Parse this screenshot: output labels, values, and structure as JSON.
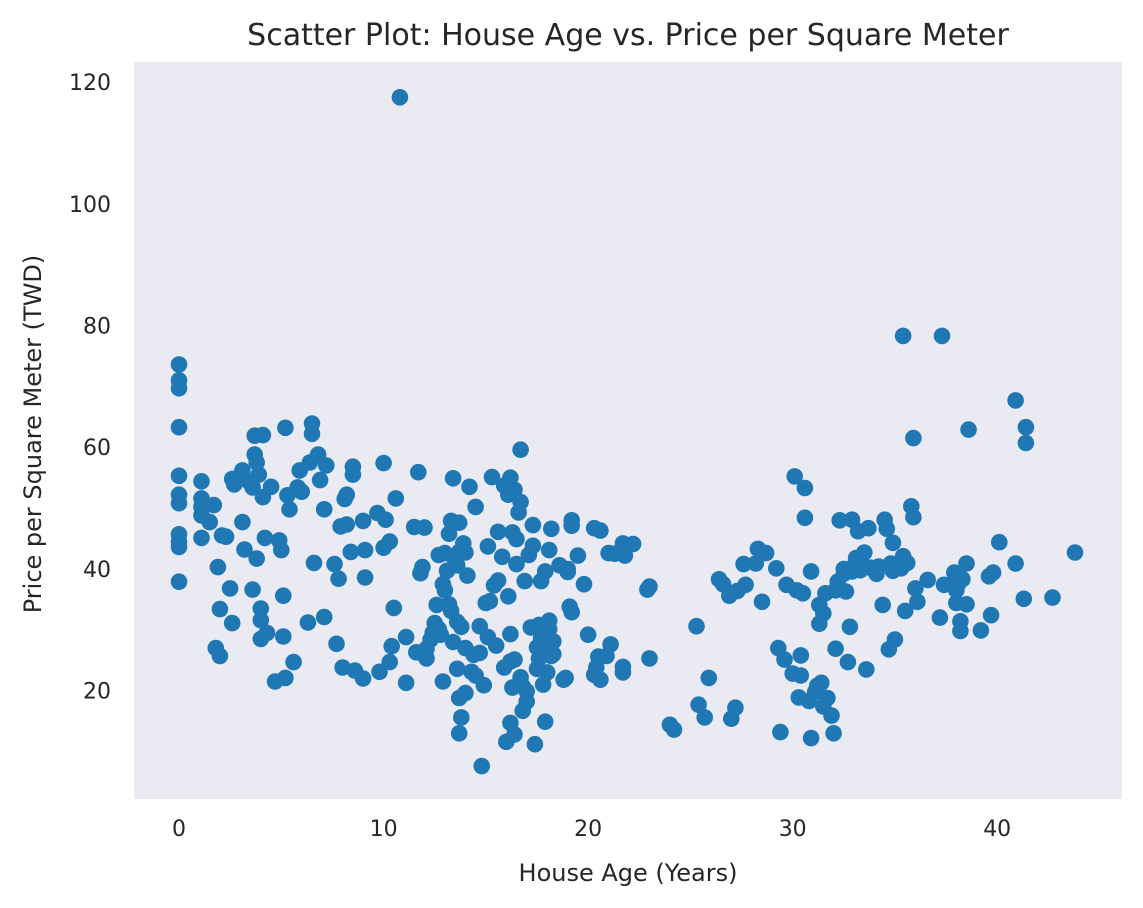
{
  "chart_data": {
    "type": "scatter",
    "title": "Scatter Plot: House Age vs. Price per Square Meter",
    "xlabel": "House Age (Years)",
    "ylabel": "Price per Square Meter (TWD)",
    "xlim": [
      -2.2,
      46.1
    ],
    "ylim": [
      2.2,
      123.3
    ],
    "xticks": [
      0,
      10,
      20,
      30,
      40
    ],
    "yticks": [
      20,
      40,
      60,
      80,
      100,
      120
    ],
    "grid": false,
    "background": "#EAEAF2",
    "marker_color": "#1F77B4",
    "points": [
      [
        0,
        73.6
      ],
      [
        0,
        71.0
      ],
      [
        0,
        69.7
      ],
      [
        0,
        63.3
      ],
      [
        0,
        55.3
      ],
      [
        0,
        52.2
      ],
      [
        0,
        50.8
      ],
      [
        0,
        45.7
      ],
      [
        0,
        44.5
      ],
      [
        0,
        43.6
      ],
      [
        0,
        37.9
      ],
      [
        1.1,
        54.4
      ],
      [
        1.1,
        51.6
      ],
      [
        1.1,
        50.2
      ],
      [
        1.1,
        48.8
      ],
      [
        1.1,
        45.1
      ],
      [
        1.5,
        47.7
      ],
      [
        1.7,
        50.5
      ],
      [
        1.8,
        27.0
      ],
      [
        1.9,
        40.3
      ],
      [
        2.0,
        25.7
      ],
      [
        2.0,
        33.4
      ],
      [
        2.1,
        45.5
      ],
      [
        2.3,
        45.3
      ],
      [
        2.5,
        36.8
      ],
      [
        2.6,
        54.8
      ],
      [
        2.6,
        31.1
      ],
      [
        2.7,
        53.9
      ],
      [
        3.1,
        47.7
      ],
      [
        3.1,
        56.2
      ],
      [
        3.2,
        43.2
      ],
      [
        3.4,
        54.4
      ],
      [
        3.6,
        53.4
      ],
      [
        3.6,
        36.6
      ],
      [
        3.7,
        61.9
      ],
      [
        3.7,
        58.8
      ],
      [
        3.8,
        57.5
      ],
      [
        3.8,
        41.7
      ],
      [
        3.9,
        55.5
      ],
      [
        4.0,
        33.5
      ],
      [
        4.0,
        31.6
      ],
      [
        4.0,
        28.5
      ],
      [
        4.1,
        62.0
      ],
      [
        4.1,
        51.8
      ],
      [
        4.2,
        45.1
      ],
      [
        4.3,
        29.5
      ],
      [
        4.5,
        53.5
      ],
      [
        4.7,
        21.5
      ],
      [
        4.9,
        44.7
      ],
      [
        5.0,
        43.1
      ],
      [
        5.1,
        35.6
      ],
      [
        5.1,
        28.9
      ],
      [
        5.2,
        22.1
      ],
      [
        5.2,
        63.2
      ],
      [
        5.3,
        52.1
      ],
      [
        5.4,
        49.8
      ],
      [
        5.6,
        24.7
      ],
      [
        5.8,
        53.4
      ],
      [
        5.9,
        56.2
      ],
      [
        6.0,
        52.7
      ],
      [
        6.3,
        31.2
      ],
      [
        6.4,
        57.5
      ],
      [
        6.5,
        63.9
      ],
      [
        6.5,
        62.2
      ],
      [
        6.6,
        41.0
      ],
      [
        6.8,
        58.8
      ],
      [
        6.9,
        54.6
      ],
      [
        7.1,
        49.8
      ],
      [
        7.1,
        32.1
      ],
      [
        7.2,
        57.0
      ],
      [
        7.6,
        40.8
      ],
      [
        7.7,
        27.7
      ],
      [
        7.8,
        38.4
      ],
      [
        7.9,
        47.0
      ],
      [
        8.0,
        23.8
      ],
      [
        8.1,
        51.5
      ],
      [
        8.2,
        52.2
      ],
      [
        8.2,
        47.3
      ],
      [
        8.4,
        42.8
      ],
      [
        8.5,
        55.5
      ],
      [
        8.5,
        56.8
      ],
      [
        8.6,
        23.3
      ],
      [
        9.0,
        47.9
      ],
      [
        9.0,
        22.0
      ],
      [
        9.1,
        38.6
      ],
      [
        9.1,
        43.1
      ],
      [
        9.7,
        49.2
      ],
      [
        9.8,
        23.1
      ],
      [
        10.0,
        57.4
      ],
      [
        10.0,
        43.5
      ],
      [
        10.1,
        48.1
      ],
      [
        10.3,
        44.5
      ],
      [
        10.3,
        24.7
      ],
      [
        10.4,
        27.3
      ],
      [
        10.5,
        33.6
      ],
      [
        10.6,
        51.6
      ],
      [
        10.8,
        117.5
      ],
      [
        11.1,
        21.3
      ],
      [
        11.1,
        28.8
      ],
      [
        11.5,
        46.9
      ],
      [
        11.6,
        26.3
      ],
      [
        11.7,
        55.9
      ],
      [
        11.8,
        39.3
      ],
      [
        11.9,
        40.3
      ],
      [
        12.0,
        46.8
      ],
      [
        12.1,
        25.3
      ],
      [
        12.1,
        26.9
      ],
      [
        12.3,
        28.4
      ],
      [
        12.4,
        29.5
      ],
      [
        12.5,
        31.1
      ],
      [
        12.6,
        34.1
      ],
      [
        12.7,
        42.3
      ],
      [
        12.7,
        30.1
      ],
      [
        12.8,
        29.2
      ],
      [
        12.9,
        37.5
      ],
      [
        12.9,
        21.5
      ],
      [
        13.0,
        36.5
      ],
      [
        13.0,
        42.6
      ],
      [
        13.1,
        39.7
      ],
      [
        13.2,
        45.8
      ],
      [
        13.2,
        34.2
      ],
      [
        13.3,
        33.1
      ],
      [
        13.3,
        47.9
      ],
      [
        13.4,
        54.9
      ],
      [
        13.4,
        28.0
      ],
      [
        13.5,
        41.4
      ],
      [
        13.6,
        40.6
      ],
      [
        13.6,
        23.6
      ],
      [
        13.6,
        31.3
      ],
      [
        13.7,
        42.8
      ],
      [
        13.7,
        47.6
      ],
      [
        13.7,
        18.8
      ],
      [
        13.7,
        13.0
      ],
      [
        13.8,
        15.6
      ],
      [
        13.8,
        30.5
      ],
      [
        13.9,
        44.2
      ],
      [
        14.0,
        42.7
      ],
      [
        14.0,
        19.6
      ],
      [
        14.0,
        27.0
      ],
      [
        14.1,
        38.9
      ],
      [
        14.2,
        53.5
      ],
      [
        14.3,
        23.1
      ],
      [
        14.4,
        25.9
      ],
      [
        14.5,
        50.2
      ],
      [
        14.5,
        22.5
      ],
      [
        14.7,
        26.2
      ],
      [
        14.7,
        30.6
      ],
      [
        14.8,
        7.6
      ],
      [
        14.9,
        20.9
      ],
      [
        15.0,
        34.4
      ],
      [
        15.1,
        43.7
      ],
      [
        15.1,
        28.8
      ],
      [
        15.2,
        34.7
      ],
      [
        15.3,
        55.1
      ],
      [
        15.4,
        37.3
      ],
      [
        15.5,
        27.4
      ],
      [
        15.6,
        46.1
      ],
      [
        15.6,
        38.1
      ],
      [
        15.8,
        42.0
      ],
      [
        15.9,
        23.8
      ],
      [
        15.9,
        53.7
      ],
      [
        16.0,
        11.6
      ],
      [
        16.1,
        35.5
      ],
      [
        16.1,
        52.2
      ],
      [
        16.2,
        24.8
      ],
      [
        16.2,
        55.0
      ],
      [
        16.2,
        14.7
      ],
      [
        16.2,
        29.3
      ],
      [
        16.3,
        46.0
      ],
      [
        16.3,
        20.5
      ],
      [
        16.4,
        25.1
      ],
      [
        16.4,
        12.8
      ],
      [
        16.4,
        53.0
      ],
      [
        16.5,
        44.9
      ],
      [
        16.5,
        40.8
      ],
      [
        16.6,
        49.3
      ],
      [
        16.7,
        51.0
      ],
      [
        16.7,
        59.6
      ],
      [
        16.7,
        22.2
      ],
      [
        16.8,
        16.7
      ],
      [
        16.8,
        20.7
      ],
      [
        16.9,
        38.0
      ],
      [
        17.0,
        18.2
      ],
      [
        17.0,
        19.9
      ],
      [
        17.1,
        42.3
      ],
      [
        17.2,
        30.4
      ],
      [
        17.3,
        47.2
      ],
      [
        17.3,
        43.8
      ],
      [
        17.4,
        11.2
      ],
      [
        17.5,
        27.1
      ],
      [
        17.5,
        23.6
      ],
      [
        17.6,
        25.3
      ],
      [
        17.6,
        30.8
      ],
      [
        17.7,
        38.0
      ],
      [
        17.7,
        28.6
      ],
      [
        17.8,
        26.5
      ],
      [
        17.8,
        21.0
      ],
      [
        17.9,
        14.9
      ],
      [
        17.9,
        39.6
      ],
      [
        18.0,
        28.1
      ],
      [
        18.0,
        23.0
      ],
      [
        18.1,
        43.1
      ],
      [
        18.1,
        30.1
      ],
      [
        18.1,
        31.5
      ],
      [
        18.2,
        46.6
      ],
      [
        18.2,
        25.7
      ],
      [
        18.3,
        26.0
      ],
      [
        18.3,
        28.1
      ],
      [
        18.6,
        40.6
      ],
      [
        18.8,
        21.8
      ],
      [
        18.9,
        22.1
      ],
      [
        19.0,
        40.0
      ],
      [
        19.0,
        39.5
      ],
      [
        19.1,
        33.8
      ],
      [
        19.2,
        32.9
      ],
      [
        19.2,
        47.1
      ],
      [
        19.2,
        48.0
      ],
      [
        19.5,
        42.2
      ],
      [
        19.8,
        37.5
      ],
      [
        20.0,
        29.2
      ],
      [
        20.3,
        46.7
      ],
      [
        20.3,
        22.6
      ],
      [
        20.4,
        23.8
      ],
      [
        20.5,
        25.6
      ],
      [
        20.6,
        46.3
      ],
      [
        20.6,
        21.8
      ],
      [
        20.9,
        25.7
      ],
      [
        21.0,
        42.6
      ],
      [
        21.1,
        27.6
      ],
      [
        21.3,
        42.5
      ],
      [
        21.7,
        44.2
      ],
      [
        21.7,
        23.9
      ],
      [
        21.7,
        23.0
      ],
      [
        21.8,
        42.2
      ],
      [
        22.2,
        44.1
      ],
      [
        22.9,
        36.6
      ],
      [
        23.0,
        37.1
      ],
      [
        23.0,
        25.3
      ],
      [
        24.0,
        14.4
      ],
      [
        24.2,
        13.6
      ],
      [
        25.3,
        30.6
      ],
      [
        25.4,
        17.7
      ],
      [
        25.7,
        15.6
      ],
      [
        25.9,
        22.1
      ],
      [
        26.4,
        38.3
      ],
      [
        26.6,
        37.5
      ],
      [
        26.9,
        35.6
      ],
      [
        27.0,
        15.4
      ],
      [
        27.2,
        17.2
      ],
      [
        27.3,
        36.4
      ],
      [
        27.6,
        40.8
      ],
      [
        27.7,
        37.4
      ],
      [
        28.2,
        40.9
      ],
      [
        28.3,
        43.3
      ],
      [
        28.5,
        34.6
      ],
      [
        28.7,
        42.6
      ],
      [
        29.2,
        40.1
      ],
      [
        29.3,
        27.0
      ],
      [
        29.4,
        13.2
      ],
      [
        29.6,
        25.1
      ],
      [
        29.7,
        37.4
      ],
      [
        30.0,
        22.8
      ],
      [
        30.1,
        55.2
      ],
      [
        30.2,
        36.5
      ],
      [
        30.3,
        18.9
      ],
      [
        30.4,
        22.5
      ],
      [
        30.4,
        25.8
      ],
      [
        30.5,
        36.0
      ],
      [
        30.6,
        53.3
      ],
      [
        30.6,
        48.4
      ],
      [
        30.8,
        18.3
      ],
      [
        30.9,
        39.6
      ],
      [
        30.9,
        12.2
      ],
      [
        31.1,
        19.8
      ],
      [
        31.2,
        20.8
      ],
      [
        31.3,
        31.0
      ],
      [
        31.3,
        34.1
      ],
      [
        31.4,
        21.3
      ],
      [
        31.5,
        17.4
      ],
      [
        31.5,
        32.7
      ],
      [
        31.6,
        36.0
      ],
      [
        31.7,
        18.8
      ],
      [
        31.9,
        15.9
      ],
      [
        32.0,
        13.0
      ],
      [
        32.1,
        36.5
      ],
      [
        32.1,
        26.9
      ],
      [
        32.2,
        37.9
      ],
      [
        32.3,
        48.0
      ],
      [
        32.5,
        40.0
      ],
      [
        32.5,
        39.2
      ],
      [
        32.6,
        36.3
      ],
      [
        32.7,
        24.7
      ],
      [
        32.8,
        30.5
      ],
      [
        32.9,
        48.1
      ],
      [
        32.9,
        39.6
      ],
      [
        33.0,
        40.5
      ],
      [
        33.1,
        41.8
      ],
      [
        33.2,
        46.2
      ],
      [
        33.3,
        39.8
      ],
      [
        33.4,
        40.6
      ],
      [
        33.5,
        42.7
      ],
      [
        33.6,
        23.5
      ],
      [
        33.7,
        46.7
      ],
      [
        33.8,
        40.2
      ],
      [
        34.1,
        39.2
      ],
      [
        34.2,
        40.4
      ],
      [
        34.4,
        34.1
      ],
      [
        34.5,
        48.1
      ],
      [
        34.6,
        46.6
      ],
      [
        34.7,
        26.8
      ],
      [
        34.8,
        40.9
      ],
      [
        34.9,
        44.3
      ],
      [
        34.9,
        39.7
      ],
      [
        35.0,
        28.4
      ],
      [
        35.3,
        40.1
      ],
      [
        35.4,
        42.1
      ],
      [
        35.4,
        78.3
      ],
      [
        35.5,
        33.1
      ],
      [
        35.6,
        41.0
      ],
      [
        35.8,
        50.3
      ],
      [
        35.9,
        48.5
      ],
      [
        35.9,
        61.5
      ],
      [
        36.0,
        36.8
      ],
      [
        36.1,
        34.6
      ],
      [
        36.6,
        38.2
      ],
      [
        37.2,
        32.0
      ],
      [
        37.3,
        78.3
      ],
      [
        37.4,
        37.4
      ],
      [
        37.9,
        39.4
      ],
      [
        38.0,
        36.5
      ],
      [
        38.0,
        34.4
      ],
      [
        38.1,
        37.6
      ],
      [
        38.2,
        31.4
      ],
      [
        38.2,
        29.8
      ],
      [
        38.3,
        38.3
      ],
      [
        38.5,
        34.2
      ],
      [
        38.5,
        40.9
      ],
      [
        38.6,
        62.9
      ],
      [
        39.2,
        29.9
      ],
      [
        39.6,
        38.8
      ],
      [
        39.7,
        32.4
      ],
      [
        39.8,
        39.4
      ],
      [
        40.1,
        44.4
      ],
      [
        40.9,
        40.9
      ],
      [
        40.9,
        67.7
      ],
      [
        41.3,
        35.1
      ],
      [
        41.4,
        60.7
      ],
      [
        41.4,
        63.3
      ],
      [
        42.7,
        35.3
      ],
      [
        43.8,
        42.7
      ]
    ]
  }
}
